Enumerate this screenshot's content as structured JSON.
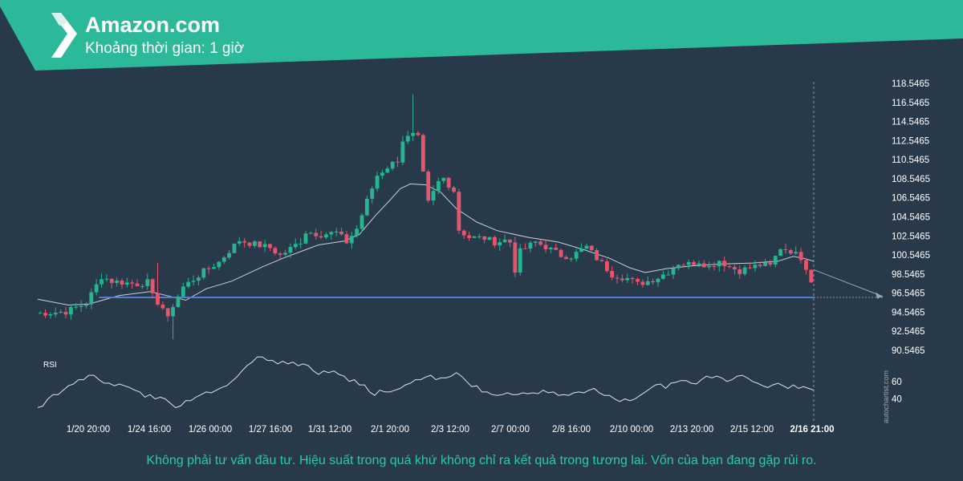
{
  "header": {
    "title": "Amazon.com",
    "subtitle": "Khoảng thời gian: 1 giờ",
    "logo_icon": "autochartist-logo-icon"
  },
  "footer": {
    "disclaimer": "Không phải tư vấn đầu tư. Hiệu suất trong quá khứ không chỉ ra kết quả trong tương lai. Vốn của bạn đang gặp rủi ro."
  },
  "watermark": "autochartist.com",
  "colors": {
    "background": "#283a4a",
    "banner": "#2bb99a",
    "up_candle": "#27b590",
    "down_candle": "#e5556b",
    "moving_average": "#c8d0d8",
    "support_line": "#4d7fd6",
    "text": "#ffffff",
    "disclaimer": "#2fc9a4"
  },
  "chart_data": [
    {
      "type": "candlestick",
      "y_ticks": [
        "118.5465",
        "116.5465",
        "114.5465",
        "112.5465",
        "110.5465",
        "108.5465",
        "106.5465",
        "104.5465",
        "102.5465",
        "100.5465",
        "98.5465",
        "96.5465",
        "94.5465",
        "92.5465",
        "90.5465"
      ],
      "ylim": [
        90.5465,
        118.5465
      ],
      "x_ticks": [
        "1/20 20:00",
        "1/24 16:00",
        "1/26 00:00",
        "1/27 16:00",
        "1/31 12:00",
        "2/1 20:00",
        "2/3 12:00",
        "2/7 00:00",
        "2/8 16:00",
        "2/10 00:00",
        "2/13 20:00",
        "2/15 12:00",
        "2/16 21:00"
      ],
      "highlight_x_tick": "2/16 21:00",
      "close_path": [
        [
          0,
          94.4
        ],
        [
          6,
          94.6
        ],
        [
          10,
          95.5
        ],
        [
          13,
          98.3
        ],
        [
          15,
          97.8
        ],
        [
          20,
          97.5
        ],
        [
          22,
          97.7
        ],
        [
          23,
          96.2
        ],
        [
          25,
          95.0
        ],
        [
          26,
          93.8
        ],
        [
          27,
          95.3
        ],
        [
          29,
          97.2
        ],
        [
          33,
          98.8
        ],
        [
          36,
          99.8
        ],
        [
          38,
          101.0
        ],
        [
          40,
          102.1
        ],
        [
          42,
          101.8
        ],
        [
          46,
          101.3
        ],
        [
          48,
          100.5
        ],
        [
          50,
          101.2
        ],
        [
          52,
          102.0
        ],
        [
          53,
          103.0
        ],
        [
          56,
          102.7
        ],
        [
          59,
          102.9
        ],
        [
          61,
          101.9
        ],
        [
          63,
          103.3
        ],
        [
          65,
          106.2
        ],
        [
          67,
          108.9
        ],
        [
          69,
          109.8
        ],
        [
          71,
          110.5
        ],
        [
          72,
          112.6
        ],
        [
          74,
          113.1
        ],
        [
          75,
          112.8
        ],
        [
          76,
          109.0
        ],
        [
          77,
          106.0
        ],
        [
          79,
          108.2
        ],
        [
          80,
          108.6
        ],
        [
          82,
          107.3
        ],
        [
          83,
          103.2
        ],
        [
          85,
          102.4
        ],
        [
          88,
          102.3
        ],
        [
          90,
          101.9
        ],
        [
          92,
          102.1
        ],
        [
          93,
          101.9
        ],
        [
          94,
          99.0
        ],
        [
          95,
          100.9
        ],
        [
          98,
          101.9
        ],
        [
          100,
          101.4
        ],
        [
          103,
          100.5
        ],
        [
          105,
          100.4
        ],
        [
          108,
          101.4
        ],
        [
          110,
          100.2
        ],
        [
          112,
          99.1
        ],
        [
          113,
          98.5
        ],
        [
          116,
          98.1
        ],
        [
          118,
          97.5
        ],
        [
          120,
          97.8
        ],
        [
          122,
          98.2
        ],
        [
          124,
          98.8
        ],
        [
          126,
          99.7
        ],
        [
          128,
          99.6
        ],
        [
          130,
          99.9
        ],
        [
          132,
          99.3
        ],
        [
          134,
          100.0
        ],
        [
          136,
          99.3
        ],
        [
          138,
          98.9
        ],
        [
          140,
          99.2
        ],
        [
          142,
          99.5
        ],
        [
          144,
          99.4
        ],
        [
          146,
          101.3
        ],
        [
          148,
          101.0
        ],
        [
          149,
          100.6
        ],
        [
          150,
          100.3
        ],
        [
          151,
          99.3
        ],
        [
          152,
          97.9
        ]
      ],
      "n_bars": 152,
      "moving_average_path": [
        [
          0,
          95.9
        ],
        [
          6,
          95.3
        ],
        [
          10,
          95.4
        ],
        [
          16,
          96.3
        ],
        [
          22,
          96.7
        ],
        [
          26,
          96.2
        ],
        [
          29,
          95.8
        ],
        [
          33,
          97.0
        ],
        [
          38,
          97.8
        ],
        [
          44,
          99.3
        ],
        [
          48,
          100.2
        ],
        [
          55,
          101.6
        ],
        [
          60,
          102.0
        ],
        [
          63,
          102.7
        ],
        [
          66,
          104.6
        ],
        [
          69,
          106.3
        ],
        [
          71,
          107.5
        ],
        [
          73,
          108.0
        ],
        [
          76,
          107.9
        ],
        [
          79,
          107.1
        ],
        [
          82,
          105.4
        ],
        [
          86,
          104.0
        ],
        [
          90,
          103.1
        ],
        [
          96,
          102.4
        ],
        [
          102,
          101.9
        ],
        [
          107,
          101.1
        ],
        [
          112,
          100.2
        ],
        [
          116,
          99.2
        ],
        [
          119,
          98.7
        ],
        [
          123,
          99.1
        ],
        [
          128,
          99.4
        ],
        [
          134,
          99.6
        ],
        [
          140,
          99.7
        ],
        [
          145,
          99.9
        ],
        [
          148,
          100.4
        ],
        [
          150,
          100.2
        ],
        [
          152,
          99.9
        ]
      ],
      "support_level": 96.1,
      "projection_end": [
        160,
        96.2
      ]
    },
    {
      "type": "line",
      "label": "RSI",
      "y_ticks": [
        "60",
        "40"
      ],
      "ylim": [
        25,
        90
      ],
      "values": [
        30,
        32,
        40,
        45,
        45,
        50,
        55,
        57,
        62,
        62,
        67,
        67,
        62,
        58,
        58,
        55,
        57,
        55,
        53,
        50,
        48,
        42,
        45,
        40,
        42,
        40,
        35,
        30,
        32,
        38,
        38,
        42,
        45,
        48,
        47,
        50,
        53,
        55,
        60,
        65,
        72,
        78,
        82,
        88,
        88,
        84,
        84,
        80,
        83,
        80,
        82,
        78,
        80,
        78,
        72,
        68,
        72,
        70,
        72,
        68,
        66,
        60,
        62,
        56,
        56,
        48,
        44,
        50,
        48,
        48,
        50,
        52,
        56,
        58,
        62,
        62,
        65,
        67,
        62,
        64,
        64,
        66,
        70,
        66,
        60,
        54,
        55,
        48,
        48,
        45,
        44,
        45,
        47,
        45,
        45,
        47,
        46,
        47,
        46,
        50,
        47,
        48,
        44,
        45,
        44,
        47,
        48,
        47,
        50,
        52,
        47,
        44,
        44,
        40,
        37,
        40,
        38,
        40,
        44,
        48,
        52,
        56,
        57,
        52,
        58,
        59,
        61,
        61,
        58,
        57,
        62,
        66,
        64,
        66,
        64,
        60,
        62,
        66,
        67,
        64,
        60,
        58,
        55,
        53,
        56,
        58,
        55,
        52,
        56,
        52,
        54,
        52,
        50
      ]
    }
  ]
}
